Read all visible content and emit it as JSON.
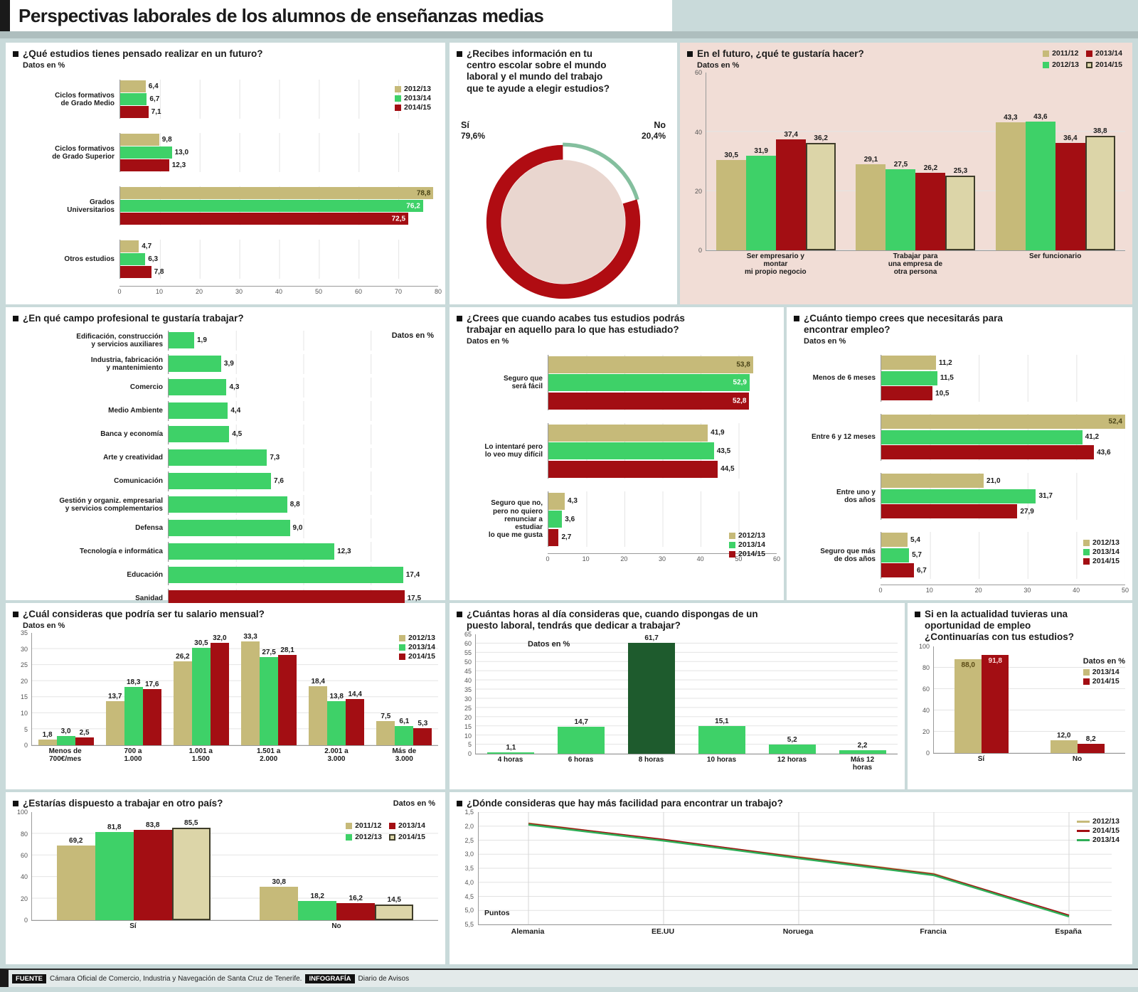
{
  "palette": {
    "khaki": "#c6ba79",
    "green": "#3ed168",
    "dark_red": "#a30e13",
    "outlined_fill": "#dcd5a8",
    "outline": "#3f3d2a",
    "dark_green": "#1e5b2d",
    "page_bg": "#c9dada",
    "panel_pink": "#f1ddd6",
    "donut_inner": "#e9d6cf",
    "donut_no_green": "#84bf9e"
  },
  "header": {
    "title": "Perspectivas laborales de los alumnos de enseñanzas medias"
  },
  "footer": {
    "source_label": "FUENTE",
    "source_text": "Cámara Oficial de Comercio, Industria y Navegación de Santa Cruz de Tenerife.",
    "credit_label": "INFOGRAFÍA",
    "credit_text": "Diario de Avisos"
  },
  "chart_data": [
    {
      "id": "estudios",
      "type": "bar",
      "orientation": "horizontal",
      "title": "¿Qué estudios tienes pensado realizar en un futuro?",
      "units": "Datos en %",
      "categories": [
        "Ciclos formativos\nde Grado Medio",
        "Ciclos formativos\nde Grado Superior",
        "Grados\nUniversitarios",
        "Otros estudios"
      ],
      "series": [
        {
          "name": "2012/13",
          "color": "#c6ba79",
          "values": [
            6.4,
            9.8,
            78.8,
            4.7
          ]
        },
        {
          "name": "2013/14",
          "color": "#3ed168",
          "dark": true,
          "values": [
            6.7,
            13.0,
            76.2,
            6.3
          ]
        },
        {
          "name": "2014/15",
          "color": "#a30e13",
          "dark": true,
          "values": [
            7.1,
            12.3,
            72.5,
            7.8
          ]
        }
      ],
      "xlim": [
        0,
        80
      ],
      "ticks": [
        0,
        10,
        20,
        30,
        40,
        50,
        60,
        70,
        80
      ],
      "grid": true,
      "legend_position": "top-right"
    },
    {
      "id": "info_centro",
      "type": "pie",
      "title": "¿Recibes información en tu\ncentro escolar sobre el mundo\nlaboral y el mundo del trabajo\nque te ayude a elegir estudios?",
      "slices": [
        {
          "label": "Sí",
          "value": 79.6,
          "pct_label": "79,6%",
          "color": "#b00c12"
        },
        {
          "label": "No",
          "value": 20.4,
          "pct_label": "20,4%",
          "color": "#84bf9e"
        }
      ]
    },
    {
      "id": "futuro",
      "type": "bar",
      "orientation": "vertical",
      "title": "En el futuro, ¿qué te gustaría hacer?",
      "units": "Datos en %",
      "categories": [
        "Ser empresario y\nmontar\nmi propio negocio",
        "Trabajar para\nuna empresa de\notra persona",
        "Ser funcionario"
      ],
      "series": [
        {
          "name": "2011/12",
          "color": "#c6ba79",
          "values": [
            30.5,
            29.1,
            43.3
          ]
        },
        {
          "name": "2012/13",
          "color": "#3ed168",
          "dark": true,
          "values": [
            31.9,
            27.5,
            43.6
          ]
        },
        {
          "name": "2013/14",
          "color": "#a30e13",
          "dark": true,
          "values": [
            37.4,
            26.2,
            36.4
          ]
        },
        {
          "name": "2014/15",
          "color": "#dcd5a8",
          "border": "#3f3d2a",
          "values": [
            36.2,
            25.3,
            38.8
          ]
        }
      ],
      "legend_order": [
        0,
        2,
        1,
        3
      ],
      "ylim": [
        0,
        60
      ],
      "ticks": [
        0,
        20,
        40,
        60
      ],
      "grid": true,
      "legend_position": "top-right"
    },
    {
      "id": "campo",
      "type": "bar",
      "orientation": "horizontal",
      "title": "¿En qué campo profesional te gustaría trabajar?",
      "units": "Datos en %",
      "categories": [
        "Edificación, construcción\ny servicios auxiliares",
        "Industria, fabricación\ny mantenimiento",
        "Comercio",
        "Medio Ambiente",
        "Banca y economía",
        "Arte y creatividad",
        "Comunicación",
        "Gestión y organiz. empresarial\ny servicios complementarios",
        "Defensa",
        "Tecnología e informática",
        "Educación",
        "Sanidad"
      ],
      "series": [
        {
          "name": "",
          "color": "#3ed168",
          "values": [
            1.9,
            3.9,
            4.3,
            4.4,
            4.5,
            7.3,
            7.6,
            8.8,
            9.0,
            12.3,
            17.4,
            17.5
          ]
        }
      ],
      "bar_colors": [
        "#3ed168",
        "#3ed168",
        "#3ed168",
        "#3ed168",
        "#3ed168",
        "#3ed168",
        "#3ed168",
        "#3ed168",
        "#3ed168",
        "#3ed168",
        "#3ed168",
        "#a30e13"
      ],
      "xlim": [
        0,
        20
      ],
      "ticks": [
        0,
        5,
        10,
        15,
        20
      ],
      "grid": true,
      "legend_position": "none"
    },
    {
      "id": "podras_trabajar",
      "type": "bar",
      "orientation": "horizontal",
      "title": "¿Crees que cuando acabes tus estudios podrás\ntrabajar en aquello para lo que has estudiado?",
      "units": "Datos en %",
      "categories": [
        "Seguro que\nserá fácil",
        "Lo intentaré pero\nlo veo muy difícil",
        "Seguro que no,\npero no quiero\nrenunciar a\nestudiar\nlo que me gusta"
      ],
      "series": [
        {
          "name": "2012/13",
          "color": "#c6ba79",
          "values": [
            53.8,
            41.9,
            4.3
          ]
        },
        {
          "name": "2013/14",
          "color": "#3ed168",
          "dark": true,
          "values": [
            52.9,
            43.5,
            3.6
          ]
        },
        {
          "name": "2014/15",
          "color": "#a30e13",
          "dark": true,
          "values": [
            52.8,
            44.5,
            2.7
          ]
        }
      ],
      "xlim": [
        0,
        60
      ],
      "ticks": [
        0,
        10,
        20,
        30,
        40,
        50,
        60
      ],
      "grid": true,
      "legend_position": "bottom-right"
    },
    {
      "id": "tiempo_empleo",
      "type": "bar",
      "orientation": "horizontal",
      "title": "¿Cuánto tiempo crees que necesitarás para\nencontrar empleo?",
      "units": "Datos en %",
      "categories": [
        "Menos de 6 meses",
        "Entre 6 y 12 meses",
        "Entre uno y\ndos años",
        "Seguro que más\nde dos años"
      ],
      "series": [
        {
          "name": "2012/13",
          "color": "#c6ba79",
          "values": [
            11.2,
            52.4,
            21.0,
            5.4
          ]
        },
        {
          "name": "2013/14",
          "color": "#3ed168",
          "dark": true,
          "values": [
            11.5,
            41.2,
            31.7,
            5.7
          ]
        },
        {
          "name": "2014/15",
          "color": "#a30e13",
          "dark": true,
          "values": [
            10.5,
            43.6,
            27.9,
            6.7
          ]
        }
      ],
      "xlim": [
        0,
        50
      ],
      "ticks": [
        0,
        10,
        20,
        30,
        40,
        50
      ],
      "grid": true,
      "legend_position": "bottom-right"
    },
    {
      "id": "salario",
      "type": "bar",
      "orientation": "vertical",
      "title": "¿Cuál consideras que podría ser tu salario mensual?",
      "units": "Datos en %",
      "categories": [
        "Menos de\n700€/mes",
        "700 a\n1.000",
        "1.001 a\n1.500",
        "1.501 a\n2.000",
        "2.001 a\n3.000",
        "Más de\n3.000"
      ],
      "series": [
        {
          "name": "2012/13",
          "color": "#c6ba79",
          "values": [
            1.8,
            13.7,
            26.2,
            33.3,
            18.4,
            7.5
          ]
        },
        {
          "name": "2013/14",
          "color": "#3ed168",
          "dark": true,
          "values": [
            3.0,
            18.3,
            30.5,
            27.5,
            13.8,
            6.1
          ]
        },
        {
          "name": "2014/15",
          "color": "#a30e13",
          "dark": true,
          "values": [
            2.5,
            17.6,
            32.0,
            28.1,
            14.4,
            5.3
          ]
        }
      ],
      "ylim": [
        0,
        35
      ],
      "ticks": [
        0,
        5,
        10,
        15,
        20,
        25,
        30,
        35
      ],
      "grid": true,
      "legend_position": "top-right"
    },
    {
      "id": "horas_dia",
      "type": "bar",
      "orientation": "vertical",
      "title": "¿Cuántas horas al día consideras que, cuando dispongas de un\npuesto laboral, tendrás que dedicar a trabajar?",
      "units": "Datos en %",
      "categories": [
        "4 horas",
        "6 horas",
        "8 horas",
        "10 horas",
        "12 horas",
        "Más 12\nhoras"
      ],
      "series": [
        {
          "name": "",
          "color": "#3ed168",
          "values": [
            1.1,
            14.7,
            61.7,
            15.1,
            5.2,
            2.2
          ]
        }
      ],
      "bar_colors": [
        "#3ed168",
        "#3ed168",
        "#1e5b2d",
        "#3ed168",
        "#3ed168",
        "#3ed168"
      ],
      "ylim": [
        0,
        65
      ],
      "ticks": [
        0,
        5,
        10,
        15,
        20,
        25,
        30,
        35,
        40,
        45,
        50,
        55,
        60,
        65
      ],
      "grid": true,
      "legend_position": "none"
    },
    {
      "id": "oportunidad",
      "type": "bar",
      "orientation": "vertical",
      "title": "Si en la actualidad tuvieras una\noportunidad de empleo\n¿Continuarías con tus estudios?",
      "units": "Datos en %",
      "categories": [
        "Sí",
        "No"
      ],
      "series": [
        {
          "name": "2013/14",
          "color": "#c6ba79",
          "values": [
            88.0,
            12.0
          ]
        },
        {
          "name": "2014/15",
          "color": "#a30e13",
          "dark": true,
          "values": [
            91.8,
            8.2
          ]
        }
      ],
      "ylim": [
        0,
        100
      ],
      "ticks": [
        0,
        20,
        40,
        60,
        80,
        100
      ],
      "grid": true,
      "legend_position": "right"
    },
    {
      "id": "otro_pais",
      "type": "bar",
      "orientation": "vertical",
      "title": "¿Estarías dispuesto a trabajar en otro país?",
      "units": "Datos en %",
      "categories": [
        "Sí",
        "No"
      ],
      "series": [
        {
          "name": "2011/12",
          "color": "#c6ba79",
          "values": [
            69.2,
            30.8
          ]
        },
        {
          "name": "2012/13",
          "color": "#3ed168",
          "dark": true,
          "values": [
            81.8,
            18.2
          ]
        },
        {
          "name": "2013/14",
          "color": "#a30e13",
          "dark": true,
          "values": [
            83.8,
            16.2
          ]
        },
        {
          "name": "2014/15",
          "color": "#dcd5a8",
          "border": "#3f3d2a",
          "values": [
            85.5,
            14.5
          ]
        }
      ],
      "legend_order": [
        0,
        2,
        1,
        3
      ],
      "ylim": [
        0,
        100
      ],
      "ticks": [
        0,
        20,
        40,
        60,
        80,
        100
      ],
      "grid": true,
      "legend_position": "top-right"
    },
    {
      "id": "paises",
      "type": "line",
      "title": "¿Dónde consideras que hay más facilidad para encontrar un trabajo?",
      "ylabel": "Puntos",
      "x": [
        "Alemania",
        "EE.UU",
        "Noruega",
        "Francia",
        "España"
      ],
      "series": [
        {
          "name": "2012/13",
          "color": "#c6ba79",
          "values": [
            1.9,
            2.5,
            3.1,
            3.7,
            5.2
          ]
        },
        {
          "name": "2014/15",
          "color": "#a30e13",
          "values": [
            1.92,
            2.48,
            3.12,
            3.72,
            5.18
          ]
        },
        {
          "name": "2013/14",
          "color": "#2fae57",
          "values": [
            1.95,
            2.52,
            3.15,
            3.75,
            5.22
          ]
        }
      ],
      "ylim": [
        1.5,
        5.5
      ],
      "invert_y": true,
      "yticks": [
        1.5,
        2.0,
        2.5,
        3.0,
        3.5,
        4.0,
        4.5,
        5.0,
        5.5
      ],
      "grid": true,
      "legend_position": "top-right"
    }
  ]
}
